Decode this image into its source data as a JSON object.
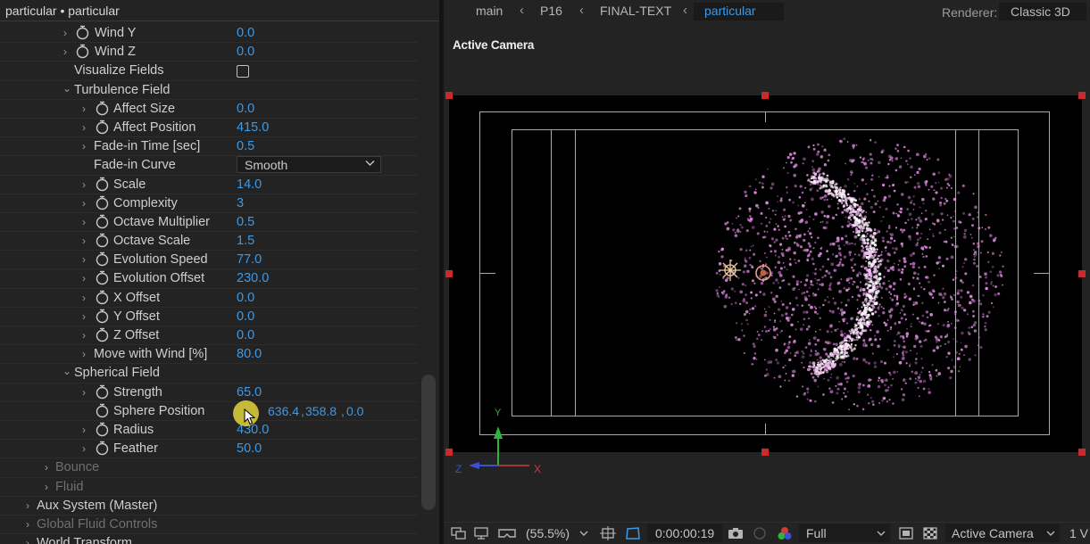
{
  "panel": {
    "title": "particular • particular",
    "rows": [
      {
        "label": "Wind Y",
        "value": "0.0"
      },
      {
        "label": "Wind Z",
        "value": "0.0"
      },
      {
        "label": "Visualize Fields"
      },
      {
        "label": "Turbulence Field"
      },
      {
        "label": "Affect Size",
        "value": "0.0"
      },
      {
        "label": "Affect Position",
        "value": "415.0"
      },
      {
        "label": "Fade-in Time [sec]",
        "value": "0.5"
      },
      {
        "label": "Fade-in Curve",
        "value": "Smooth"
      },
      {
        "label": "Scale",
        "value": "14.0"
      },
      {
        "label": "Complexity",
        "value": "3"
      },
      {
        "label": "Octave Multiplier",
        "value": "0.5"
      },
      {
        "label": "Octave Scale",
        "value": "1.5"
      },
      {
        "label": "Evolution Speed",
        "value": "77.0"
      },
      {
        "label": "Evolution Offset",
        "value": "230.0"
      },
      {
        "label": "X Offset",
        "value": "0.0"
      },
      {
        "label": "Y Offset",
        "value": "0.0"
      },
      {
        "label": "Z Offset",
        "value": "0.0"
      },
      {
        "label": "Move with Wind [%]",
        "value": "80.0"
      },
      {
        "label": "Spherical Field"
      },
      {
        "label": "Strength",
        "value": "65.0"
      },
      {
        "label": "Sphere Position",
        "x": "636.4",
        "y": "358.8",
        "z": "0.0"
      },
      {
        "label": "Radius",
        "value": "430.0"
      },
      {
        "label": "Feather",
        "value": "50.0"
      },
      {
        "label": "Bounce"
      },
      {
        "label": "Fluid"
      },
      {
        "label": "Aux System (Master)"
      },
      {
        "label": "Global Fluid Controls"
      },
      {
        "label": "World Transform"
      }
    ],
    "coord_separator": ","
  },
  "viewer": {
    "breadcrumbs": [
      "main",
      "P16",
      "FINAL-TEXT",
      "particular"
    ],
    "renderer_label": "Renderer:",
    "renderer_value": "Classic 3D",
    "view_label": "Active Camera",
    "axis_labels": {
      "y": "Y",
      "x": "X",
      "z": "Z"
    }
  },
  "toolbar": {
    "zoom": "(55.5%)",
    "timecode": "0:00:00:19",
    "resolution": "Full",
    "view": "Active Camera",
    "views_count": "1 V"
  },
  "colors": {
    "value_blue": "#3d9ae8",
    "particle_pink": "#e08be0",
    "handle_red": "#cc2a2a"
  }
}
